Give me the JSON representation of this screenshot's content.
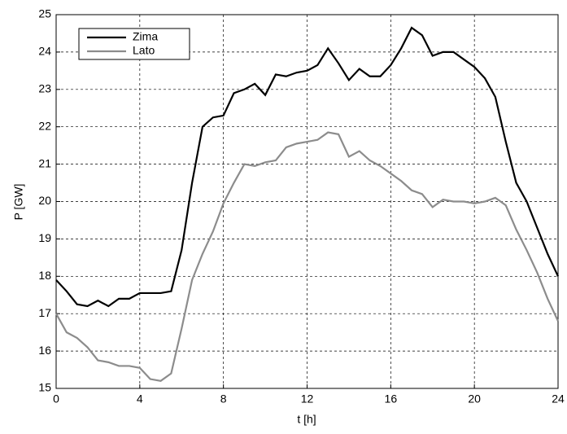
{
  "chart_data": {
    "type": "line",
    "xlabel": "t [h]",
    "ylabel": "P [GW]",
    "x": [
      0,
      0.5,
      1,
      1.5,
      2,
      2.5,
      3,
      3.5,
      4,
      4.5,
      5,
      5.5,
      6,
      6.5,
      7,
      7.5,
      8,
      8.5,
      9,
      9.5,
      10,
      10.5,
      11,
      11.5,
      12,
      12.5,
      13,
      13.5,
      14,
      14.5,
      15,
      15.5,
      16,
      16.5,
      17,
      17.5,
      18,
      18.5,
      19,
      19.5,
      20,
      20.5,
      21,
      21.5,
      22,
      22.5,
      23,
      23.5,
      24
    ],
    "series": [
      {
        "name": "Zima",
        "color": "#000000",
        "values": [
          17.9,
          17.6,
          17.25,
          17.2,
          17.35,
          17.2,
          17.4,
          17.4,
          17.55,
          17.55,
          17.55,
          17.6,
          18.7,
          20.5,
          22.0,
          22.25,
          22.3,
          22.9,
          23.0,
          23.15,
          22.85,
          23.4,
          23.35,
          23.45,
          23.5,
          23.65,
          24.1,
          23.7,
          23.25,
          23.55,
          23.35,
          23.35,
          23.65,
          24.1,
          24.65,
          24.45,
          23.9,
          24.0,
          24.0,
          23.8,
          23.6,
          23.3,
          22.8,
          21.6,
          20.5,
          20.0,
          19.3,
          18.6,
          18.0
        ]
      },
      {
        "name": "Lato",
        "color": "#8c8c8c",
        "values": [
          17.0,
          16.5,
          16.35,
          16.1,
          15.75,
          15.7,
          15.6,
          15.6,
          15.55,
          15.25,
          15.2,
          15.4,
          16.6,
          17.9,
          18.6,
          19.2,
          19.95,
          20.5,
          21.0,
          20.95,
          21.05,
          21.1,
          21.45,
          21.55,
          21.6,
          21.65,
          21.85,
          21.8,
          21.2,
          21.35,
          21.1,
          20.95,
          20.75,
          20.55,
          20.3,
          20.2,
          19.85,
          20.05,
          20.0,
          20.0,
          19.95,
          20.0,
          20.1,
          19.9,
          19.25,
          18.7,
          18.1,
          17.4,
          16.8
        ]
      }
    ],
    "xlim": [
      0,
      24
    ],
    "xticks": [
      0,
      4,
      8,
      12,
      16,
      20,
      24
    ],
    "ylim": [
      15,
      25
    ],
    "yticks": [
      15,
      16,
      17,
      18,
      19,
      20,
      21,
      22,
      23,
      24,
      25
    ],
    "grid": true,
    "legend": "upper-left"
  }
}
